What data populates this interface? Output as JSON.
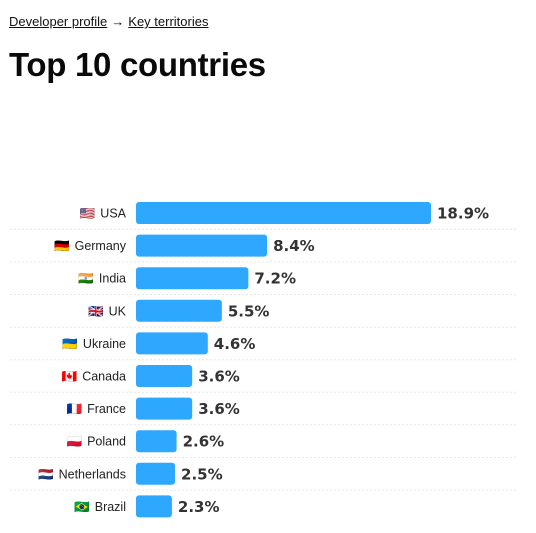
{
  "breadcrumb": {
    "parent": "Developer profile",
    "separator": "→",
    "current": "Key territories"
  },
  "page_title": "Top 10 countries",
  "chart_data": {
    "type": "bar",
    "orientation": "horizontal",
    "title": "",
    "xlabel": "",
    "ylabel": "",
    "categories": [
      "USA",
      "Germany",
      "India",
      "UK",
      "Ukraine",
      "Canada",
      "France",
      "Poland",
      "Netherlands",
      "Brazil"
    ],
    "flags": [
      "🇺🇸",
      "🇩🇪",
      "🇮🇳",
      "🇬🇧",
      "🇺🇦",
      "🇨🇦",
      "🇫🇷",
      "🇵🇱",
      "🇳🇱",
      "🇧🇷"
    ],
    "values": [
      18.9,
      8.4,
      7.2,
      5.5,
      4.6,
      3.6,
      3.6,
      2.6,
      2.5,
      2.3
    ],
    "value_labels": [
      "18.9%",
      "8.4%",
      "7.2%",
      "5.5%",
      "4.6%",
      "3.6%",
      "3.6%",
      "2.6%",
      "2.5%",
      "2.3%"
    ],
    "xlim": [
      0,
      18.9
    ],
    "grid": true,
    "legend": "none",
    "bar_color": "#2ea7ff"
  }
}
